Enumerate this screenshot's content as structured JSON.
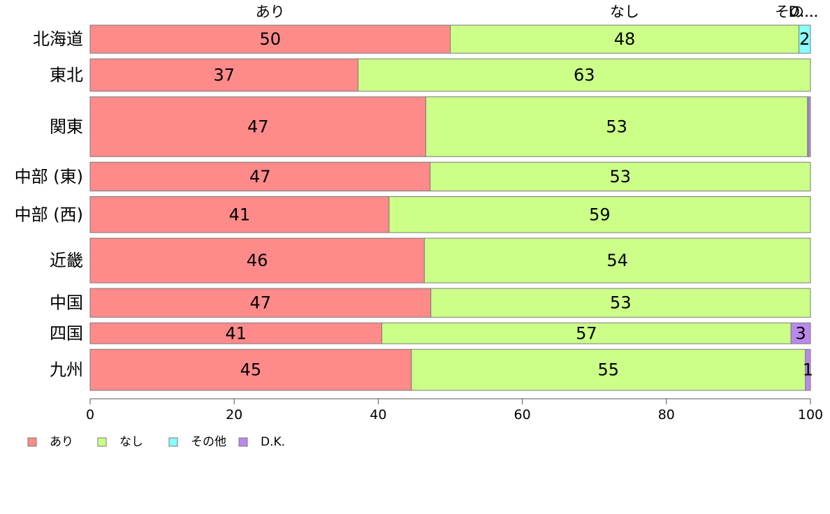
{
  "chart_data": {
    "type": "bar",
    "orientation": "horizontal",
    "stacked": true,
    "categories": [
      "北海道",
      "東北",
      "関東",
      "中部 (東)",
      "中部 (西)",
      "近畿",
      "中国",
      "四国",
      "九州"
    ],
    "series": [
      {
        "name": "あり",
        "values": [
          50,
          37.2,
          46.6,
          47.2,
          41.5,
          46.4,
          47.3,
          40.5,
          44.6
        ],
        "color": "#ff8a8a"
      },
      {
        "name": "なし",
        "values": [
          48.4,
          62.8,
          53,
          52.8,
          58.5,
          53.6,
          52.7,
          56.8,
          54.7
        ],
        "color": "#ccff88"
      },
      {
        "name": "その他",
        "values": [
          1.6,
          0,
          0.1,
          0,
          0,
          0,
          0,
          0,
          0
        ],
        "color": "#88ffff"
      },
      {
        "name": "D.K.",
        "values": [
          0,
          0,
          0.3,
          0,
          0,
          0,
          0,
          2.7,
          0.7
        ],
        "color": "#bb88ee"
      }
    ],
    "data_labels": [
      [
        "50",
        "48",
        "2",
        ""
      ],
      [
        "37",
        "63",
        "",
        ""
      ],
      [
        "47",
        "53",
        "",
        ""
      ],
      [
        "47",
        "53",
        "",
        ""
      ],
      [
        "41",
        "59",
        "",
        ""
      ],
      [
        "46",
        "54",
        "",
        ""
      ],
      [
        "47",
        "53",
        "",
        ""
      ],
      [
        "41",
        "57",
        "",
        "3"
      ],
      [
        "45",
        "55",
        "",
        "1"
      ]
    ],
    "relative_row_weights": [
      0.78,
      0.9,
      1.66,
      0.8,
      1.0,
      1.24,
      0.8,
      0.58,
      1.14
    ],
    "top_labels": [
      "あり",
      "なし",
      "その...",
      "D...."
    ],
    "xlim": [
      0,
      100
    ],
    "x_ticks": [
      "0",
      "20",
      "40",
      "60",
      "80",
      "100"
    ],
    "grid": false,
    "legend_position": "bottom-left",
    "legend": [
      "あり",
      "なし",
      "その他",
      "D.K."
    ]
  }
}
